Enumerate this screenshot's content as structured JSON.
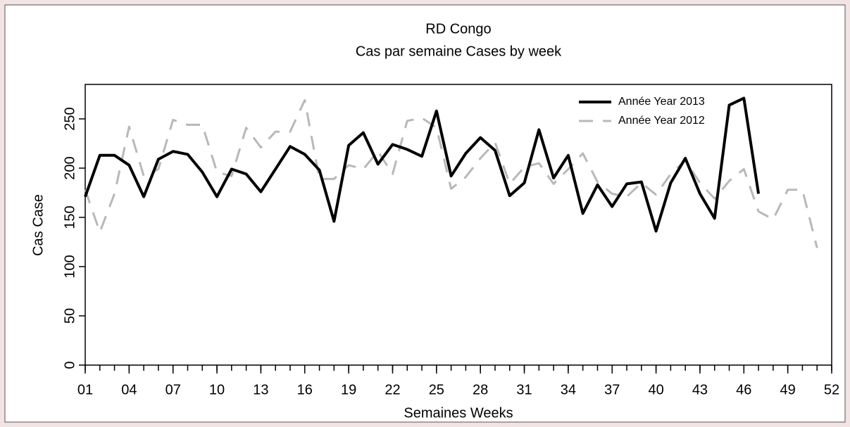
{
  "chart_data": {
    "type": "line",
    "title": "RD Congo",
    "subtitle": "Cas par semaine Cases by week",
    "x_label": "Semaines Weeks",
    "y_label": "Cas Case",
    "x": [
      1,
      2,
      3,
      4,
      5,
      6,
      7,
      8,
      9,
      10,
      11,
      12,
      13,
      14,
      15,
      16,
      17,
      18,
      19,
      20,
      21,
      22,
      23,
      24,
      25,
      26,
      27,
      28,
      29,
      30,
      31,
      32,
      33,
      34,
      35,
      36,
      37,
      38,
      39,
      40,
      41,
      42,
      43,
      44,
      45,
      46,
      47,
      48,
      49,
      50,
      51,
      52
    ],
    "series": [
      {
        "name": "Année Year 2013",
        "color": "#000000",
        "linestyle": "solid",
        "values": [
          171,
          213,
          213,
          203,
          171,
          209,
          217,
          214,
          196,
          171,
          199,
          194,
          176,
          199,
          222,
          214,
          198,
          146,
          223,
          236,
          204,
          224,
          219,
          212,
          258,
          192,
          215,
          231,
          218,
          172,
          185,
          239,
          190,
          213,
          154,
          183,
          161,
          184,
          186,
          136,
          185,
          210,
          174,
          149,
          264,
          271,
          174,
          null,
          null,
          null,
          null,
          null
        ]
      },
      {
        "name": "Année Year 2012",
        "color": "#b8b8b8",
        "linestyle": "dashed",
        "values": [
          178,
          135,
          174,
          242,
          192,
          199,
          249,
          244,
          244,
          196,
          192,
          241,
          221,
          237,
          237,
          269,
          189,
          189,
          203,
          199,
          217,
          194,
          248,
          251,
          241,
          179,
          191,
          210,
          226,
          184,
          201,
          205,
          184,
          199,
          215,
          186,
          174,
          171,
          185,
          173,
          194,
          208,
          185,
          169,
          187,
          199,
          156,
          148,
          178,
          178,
          119,
          null
        ]
      }
    ],
    "xlim": [
      1,
      52
    ],
    "xticks": [
      {
        "value": 1,
        "label": "01"
      },
      {
        "value": 4,
        "label": "04"
      },
      {
        "value": 7,
        "label": "07"
      },
      10,
      13,
      16,
      19,
      22,
      25,
      28,
      31,
      34,
      37,
      40,
      43,
      46,
      49,
      52
    ],
    "ylim": [
      0,
      285
    ],
    "yticks": [
      0,
      50,
      100,
      150,
      200,
      250
    ],
    "legend": "top-right"
  }
}
